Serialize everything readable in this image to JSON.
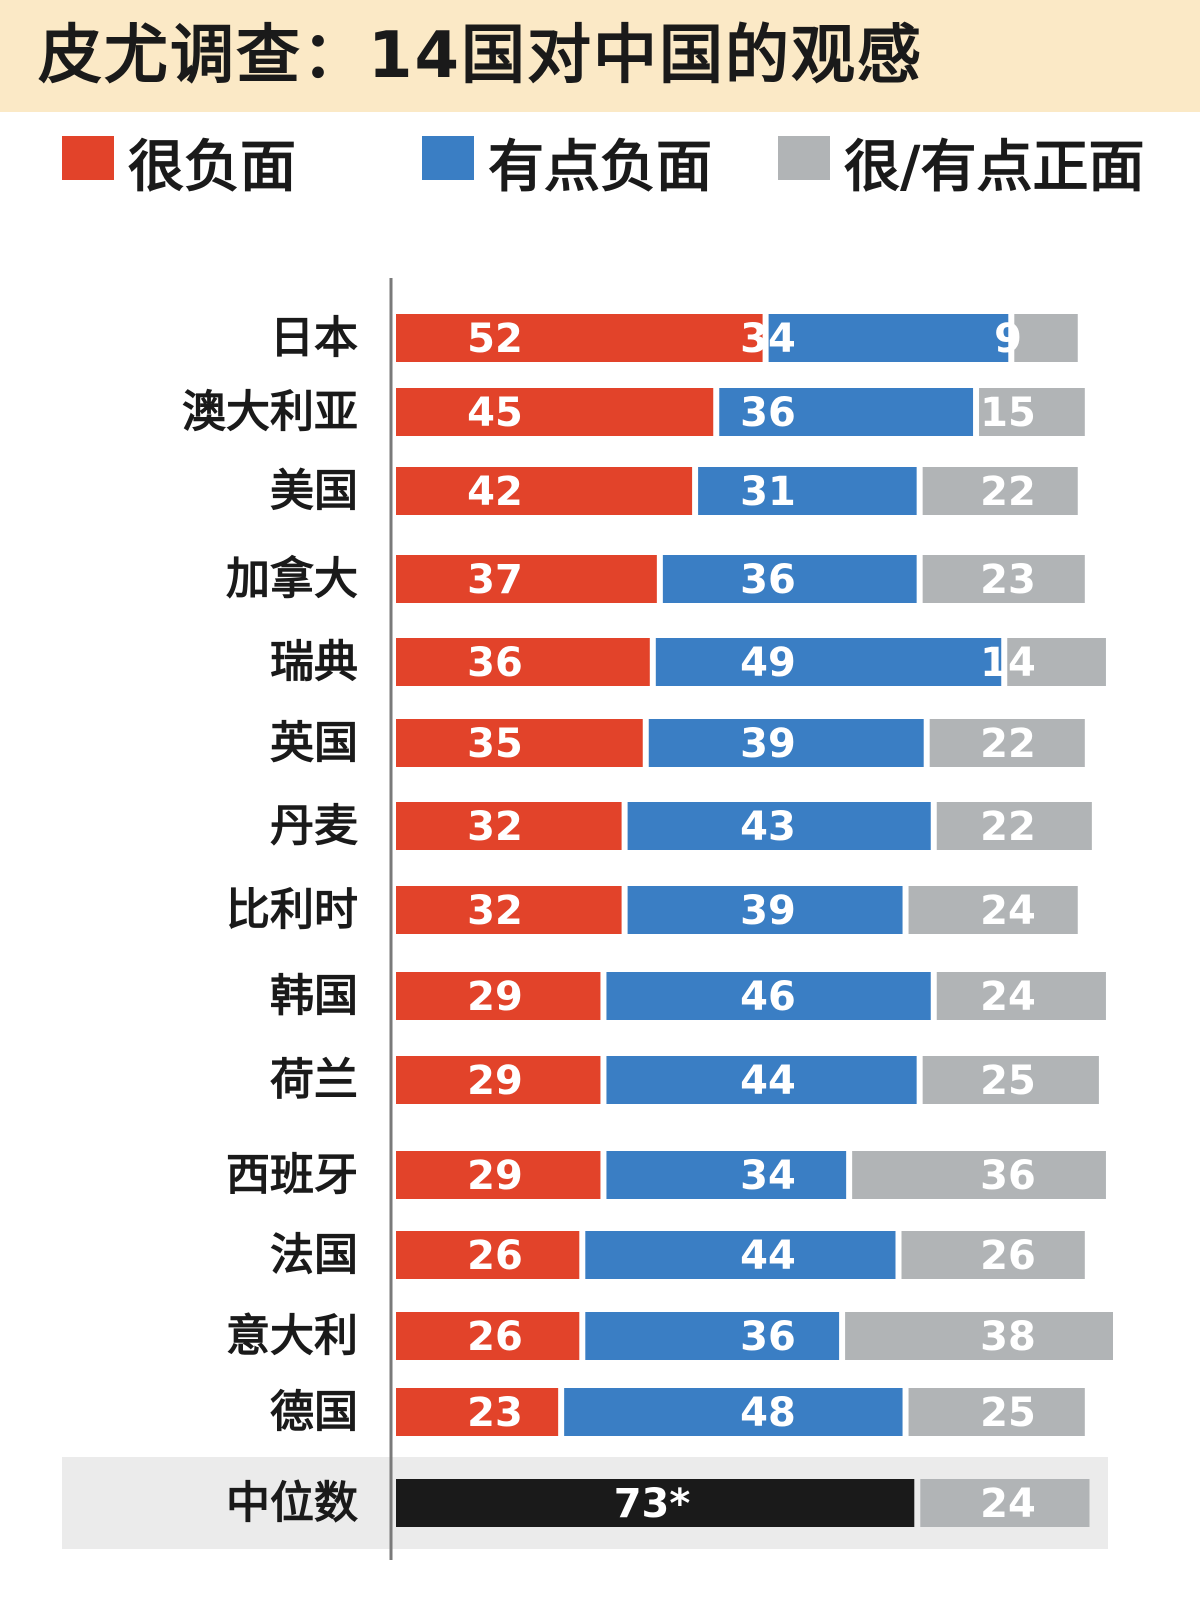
{
  "chart_data": {
    "type": "bar",
    "orientation": "horizontal",
    "stacked": true,
    "title": "皮尤调查：14国对中国的观感",
    "legend_position": "top",
    "categories": [
      "日本",
      "澳大利亚",
      "美国",
      "加拿大",
      "瑞典",
      "英国",
      "丹麦",
      "比利时",
      "韩国",
      "荷兰",
      "西班牙",
      "法国",
      "意大利",
      "德国"
    ],
    "series": [
      {
        "name": "很负面",
        "color": "#e2432a",
        "values": [
          52,
          45,
          42,
          37,
          36,
          35,
          32,
          32,
          29,
          29,
          29,
          26,
          26,
          23
        ]
      },
      {
        "name": "有点负面",
        "color": "#3a7ec4",
        "values": [
          34,
          36,
          31,
          36,
          49,
          39,
          43,
          39,
          46,
          44,
          34,
          44,
          36,
          48
        ]
      },
      {
        "name": "很/有点正面",
        "color": "#b1b4b6",
        "values": [
          9,
          15,
          22,
          23,
          14,
          22,
          22,
          24,
          24,
          25,
          36,
          26,
          38,
          25
        ]
      }
    ],
    "median": {
      "label": "中位数",
      "negative_value": 73,
      "negative_display": "73*",
      "negative_color": "#1a1a1a",
      "positive_value": 24,
      "positive_color": "#b1b4b6"
    }
  }
}
